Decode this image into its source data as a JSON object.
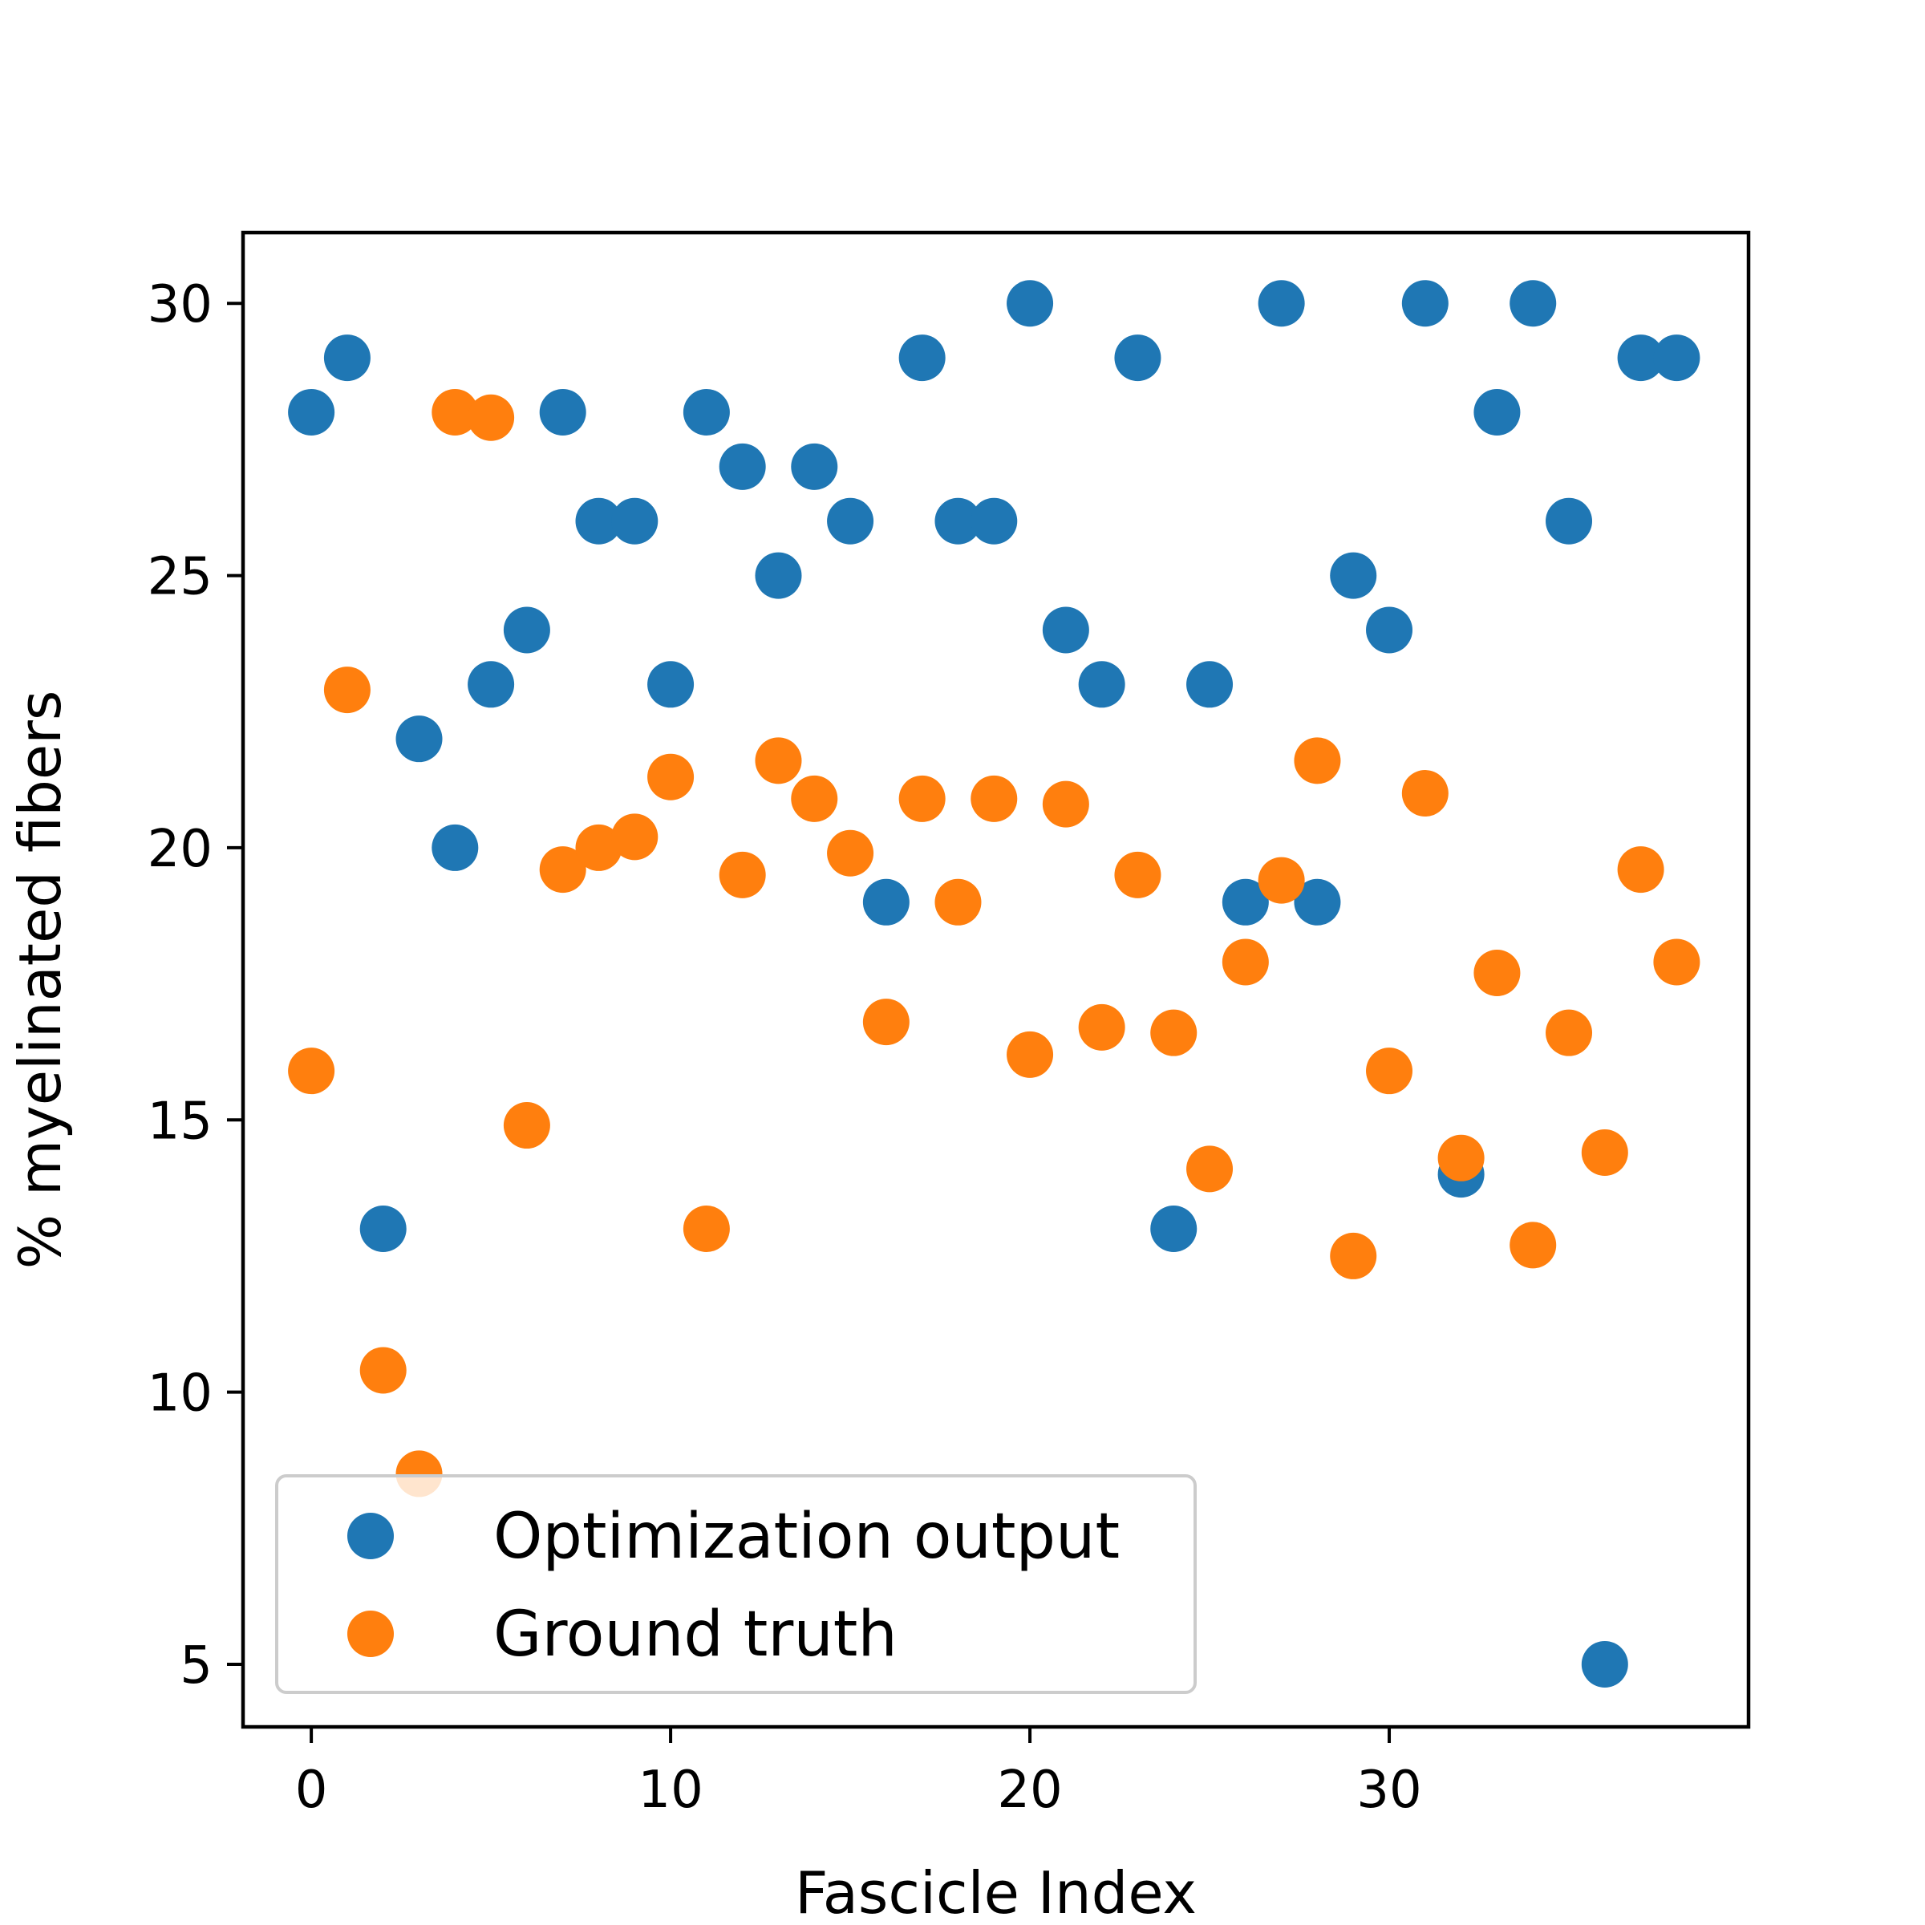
{
  "chart_data": {
    "type": "scatter",
    "title": "",
    "xlabel": "Fascicle Index",
    "ylabel": "% myelinated fibers",
    "xlim": [
      -1.9,
      40.0
    ],
    "ylim": [
      3.85,
      31.3
    ],
    "xticks": [
      0,
      10,
      20,
      30
    ],
    "yticks": [
      5,
      10,
      15,
      20,
      25,
      30
    ],
    "grid": false,
    "legend_position": "lower-left",
    "series": [
      {
        "name": "Optimization output",
        "color": "#1f77b4",
        "x": [
          0,
          1,
          2,
          3,
          4,
          5,
          6,
          7,
          8,
          9,
          10,
          11,
          12,
          13,
          14,
          15,
          16,
          17,
          18,
          19,
          20,
          21,
          22,
          23,
          24,
          25,
          26,
          27,
          28,
          29,
          30,
          31,
          32,
          33,
          34,
          35,
          36,
          37,
          38
        ],
        "y": [
          28,
          29,
          13,
          22,
          20,
          23,
          24,
          28,
          26,
          26,
          23,
          28,
          27,
          25,
          27,
          26,
          19,
          29,
          26,
          26,
          30,
          24,
          23,
          29,
          13,
          23,
          19,
          30,
          19,
          25,
          24,
          30,
          14,
          28,
          30,
          26,
          5,
          29,
          29
        ]
      },
      {
        "name": "Ground truth",
        "color": "#ff7f0e",
        "x": [
          0,
          1,
          2,
          3,
          4,
          5,
          6,
          7,
          8,
          9,
          10,
          11,
          12,
          13,
          14,
          15,
          16,
          17,
          18,
          19,
          20,
          21,
          22,
          23,
          24,
          25,
          26,
          27,
          28,
          29,
          30,
          31,
          32,
          33,
          34,
          35,
          36,
          37,
          38
        ],
        "y": [
          15.9,
          22.9,
          10.4,
          8.5,
          28.0,
          27.9,
          14.9,
          19.6,
          20.0,
          20.2,
          21.3,
          13.0,
          19.5,
          21.6,
          20.9,
          19.9,
          16.8,
          20.9,
          19.0,
          20.9,
          16.2,
          20.8,
          16.7,
          19.5,
          16.6,
          14.1,
          17.9,
          19.4,
          21.6,
          12.5,
          15.9,
          21.0,
          14.3,
          17.7,
          12.7,
          16.6,
          14.4,
          19.6,
          17.9
        ]
      }
    ]
  }
}
